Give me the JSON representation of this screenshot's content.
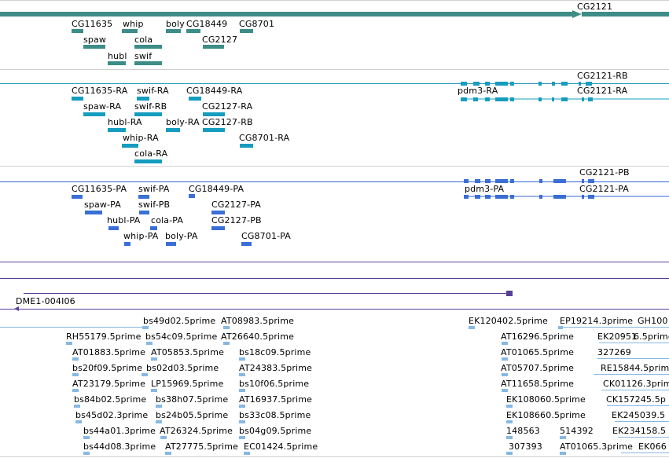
{
  "colors": {
    "gene": "#3d8c86",
    "transcript_rb": "#159cbf",
    "transcript_pb": "#3a6fd6",
    "gene_line": "#2d7d78",
    "rb_line": "#2596be",
    "pb_line": "#3566d1",
    "purple": "#5a3f98",
    "est": "#86b8e3",
    "separator": "#d0d0d0"
  },
  "tracks": {
    "genes": [
      "CG2121",
      "CG11635",
      "whip",
      "boly",
      "CG18449",
      "CG8701",
      "spaw",
      "cola",
      "CG2127",
      "hubl",
      "swif"
    ],
    "transcripts_rb": [
      "CG2121-RB",
      "CG11635-RA",
      "swif-RA",
      "CG18449-RA",
      "pdm3-RA",
      "CG2121-RA",
      "spaw-RA",
      "swif-RB",
      "CG2127-RA",
      "hubl-RA",
      "boly-RA",
      "CG2127-RB",
      "whip-RA",
      "CG8701-RA",
      "cola-RA"
    ],
    "transcripts_pb": [
      "CG2121-PB",
      "CG11635-PA",
      "swif-PA",
      "CG18449-PA",
      "pdm3-PA",
      "CG2121-PA",
      "spaw-PA",
      "swif-PB",
      "CG2127-PA",
      "hubl-PA",
      "cola-PA",
      "CG2127-PB",
      "whip-PA",
      "boly-PA",
      "CG8701-PA"
    ],
    "clone": [
      "DME1-004I06"
    ],
    "ests": [
      "bs49d02.5prime",
      "AT08983.5prime",
      "EK120402.5prime",
      "EP19214.3prime",
      "GH100",
      "RH55179.5prime",
      "bs54c09.5prime",
      "AT26640.5prime",
      "AT16296.5prime",
      "EK20951",
      "6.5prime",
      "AT01883.5prime",
      "AT05853.5prime",
      "bs18c09.5prime",
      "AT01065.5prime",
      "327269",
      "bs20f09.5prime",
      "bs02d03.5prime",
      "AT24383.5prime",
      "AT05707.5prime",
      "RE15844.5prime",
      "AT23179.5prime",
      "LP15969.5prime",
      "bs10f06.5prime",
      "AT11658.5prime",
      "CK01126.3prime",
      "bs84b02.5prime",
      "bs38h07.5prime",
      "AT16937.5prime",
      "EK108060.5prime",
      "CK157245.5p",
      "bs45d02.3prime",
      "bs24b05.5prime",
      "bs33c08.5prime",
      "EK108660.5prime",
      "EK245039.5",
      "bs44a01.3prime",
      "AT26324.5prime",
      "bs04g09.5prime",
      "148563",
      "514392",
      "EK234158.5",
      "bs44d08.3prime",
      "AT27775.5prime",
      "EC01424.5prime",
      "307393",
      "AT01065.3prime",
      "EK066"
    ]
  }
}
